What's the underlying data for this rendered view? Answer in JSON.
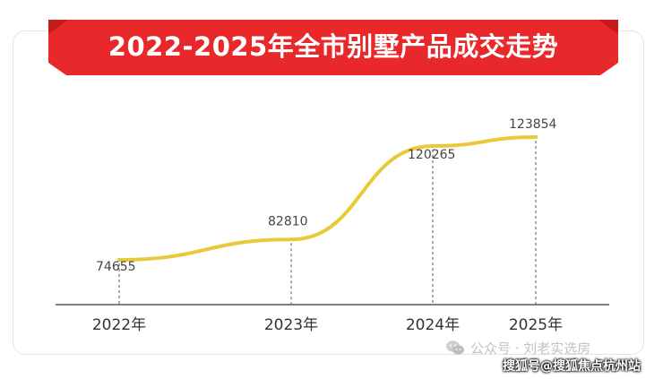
{
  "title": "2022-2025年全市别墅产品成交走势",
  "colors": {
    "banner": "#e8282b",
    "banner_tip": "#c41b1d",
    "line": "#e8c93a",
    "axis": "#555555",
    "label": "#444444"
  },
  "chart_data": {
    "type": "line",
    "categories": [
      "2022年",
      "2023年",
      "2024年",
      "2025年"
    ],
    "values": [
      74655,
      82810,
      120265,
      123854
    ],
    "data_labels": [
      "74655",
      "82810",
      "120265",
      "123854"
    ],
    "title": "2022-2025年全市别墅产品成交走势",
    "xlabel": "",
    "ylabel": "",
    "smooth": true,
    "grid": false,
    "drop_lines": true
  },
  "watermark": {
    "icon": "wechat-icon",
    "text": "公众号 · 刘老实选房"
  },
  "source_tag": "搜狐号@搜狐焦点杭州站"
}
